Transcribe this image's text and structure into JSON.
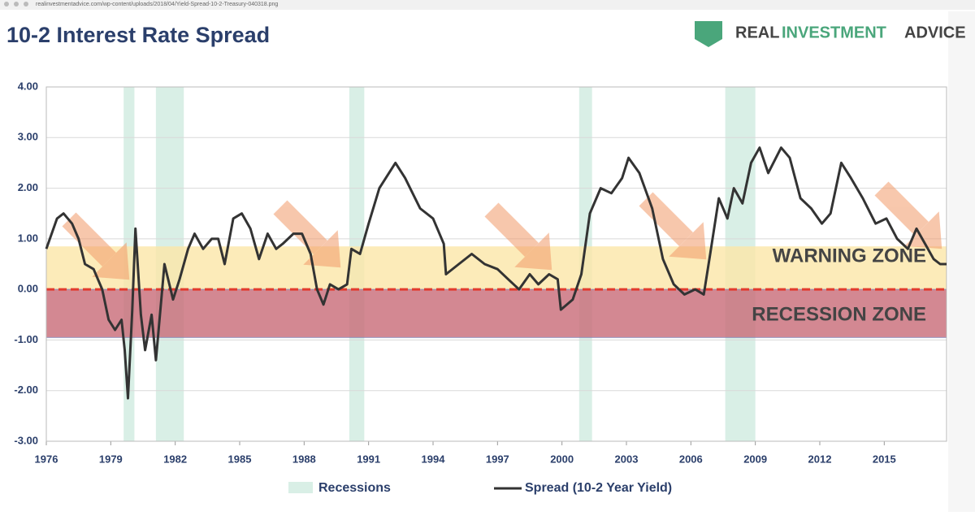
{
  "browser": {
    "url": "realinvestmentadvice.com/wp-content/uploads/2018/04/Yield-Spread-10-2-Treasury-040318.png"
  },
  "logo": {
    "word1": "REAL",
    "word2": "INVESTMENT",
    "word3": "ADVICE"
  },
  "chart_data": {
    "type": "line",
    "title": "10-2 Interest Rate Spread",
    "x": [
      1976.0,
      1976.5,
      1976.8,
      1977.2,
      1977.5,
      1977.8,
      1978.2,
      1978.6,
      1978.9,
      1979.2,
      1979.5,
      1979.65,
      1979.8,
      1980.0,
      1980.15,
      1980.4,
      1980.6,
      1980.9,
      1981.1,
      1981.5,
      1981.9,
      1982.2,
      1982.6,
      1982.9,
      1983.3,
      1983.7,
      1984.0,
      1984.3,
      1984.7,
      1985.1,
      1985.5,
      1985.9,
      1986.3,
      1986.7,
      1987.0,
      1987.5,
      1987.9,
      1988.3,
      1988.6,
      1988.9,
      1989.2,
      1989.6,
      1990.0,
      1990.2,
      1990.6,
      1991.0,
      1991.5,
      1992.25,
      1992.7,
      1993.4,
      1994.0,
      1994.5,
      1994.6,
      1995.2,
      1995.8,
      1996.4,
      1997.0,
      1997.5,
      1998.0,
      1998.5,
      1998.9,
      1999.4,
      1999.8,
      1999.95,
      2000.5,
      2000.9,
      2001.3,
      2001.8,
      2002.3,
      2002.8,
      2003.1,
      2003.6,
      2004.2,
      2004.7,
      2005.2,
      2005.7,
      2006.2,
      2006.6,
      2006.9,
      2007.3,
      2007.7,
      2008.0,
      2008.4,
      2008.8,
      2009.2,
      2009.6,
      2010.2,
      2010.6,
      2011.1,
      2011.6,
      2012.1,
      2012.5,
      2013.0,
      2013.45,
      2014.0,
      2014.6,
      2015.1,
      2015.6,
      2016.1,
      2016.5,
      2016.9,
      2017.3,
      2017.6,
      2017.9
    ],
    "series": [
      {
        "name": "Spread (10-2 Year Yield)",
        "color": "#333333",
        "values": [
          0.8,
          1.4,
          1.5,
          1.3,
          1.0,
          0.5,
          0.4,
          0.0,
          -0.6,
          -0.8,
          -0.6,
          -1.2,
          -2.15,
          -0.4,
          1.2,
          -0.5,
          -1.2,
          -0.5,
          -1.4,
          0.5,
          -0.2,
          0.2,
          0.8,
          1.1,
          0.8,
          1.0,
          1.0,
          0.5,
          1.4,
          1.5,
          1.2,
          0.6,
          1.1,
          0.8,
          0.9,
          1.1,
          1.1,
          0.7,
          0.0,
          -0.3,
          0.1,
          0.0,
          0.1,
          0.8,
          0.7,
          1.3,
          2.0,
          2.5,
          2.2,
          1.6,
          1.4,
          0.9,
          0.3,
          0.5,
          0.7,
          0.5,
          0.4,
          0.2,
          0.0,
          0.3,
          0.1,
          0.3,
          0.2,
          -0.4,
          -0.2,
          0.3,
          1.5,
          2.0,
          1.9,
          2.2,
          2.6,
          2.3,
          1.6,
          0.6,
          0.1,
          -0.1,
          0.0,
          -0.1,
          0.7,
          1.8,
          1.4,
          2.0,
          1.7,
          2.5,
          2.8,
          2.3,
          2.8,
          2.6,
          1.8,
          1.6,
          1.3,
          1.5,
          2.5,
          2.2,
          1.8,
          1.3,
          1.4,
          1.0,
          0.8,
          1.2,
          0.9,
          0.6,
          0.5,
          0.5
        ]
      }
    ],
    "recessions": {
      "name": "Recessions",
      "color": "#d9efe6",
      "periods": [
        [
          1979.6,
          1980.1
        ],
        [
          1981.1,
          1982.4
        ],
        [
          1990.1,
          1990.8
        ],
        [
          2000.8,
          2001.4
        ],
        [
          2007.6,
          2009.0
        ]
      ]
    },
    "zones": [
      {
        "label": "WARNING ZONE",
        "from": 0,
        "to": 0.85,
        "color": "#fbe6a8"
      },
      {
        "label": "RECESSION ZONE",
        "from": -0.95,
        "to": 0,
        "color": "#c96b78"
      }
    ],
    "xlim": [
      1976,
      2017.9
    ],
    "xticks": [
      1976,
      1979,
      1982,
      1985,
      1988,
      1991,
      1994,
      1997,
      2000,
      2003,
      2006,
      2009,
      2012,
      2015
    ],
    "ylim": [
      -3,
      4
    ],
    "yticks": [
      {
        "value": -3,
        "label": "-3.00"
      },
      {
        "value": -2,
        "label": "-2.00"
      },
      {
        "value": -1,
        "label": "-1.00"
      },
      {
        "value": 0,
        "label": "0.00"
      },
      {
        "value": 1,
        "label": "1.00"
      },
      {
        "value": 2,
        "label": "2.00"
      },
      {
        "value": 3,
        "label": "3.00"
      },
      {
        "value": 4,
        "label": "4.00"
      }
    ],
    "grid": true
  }
}
